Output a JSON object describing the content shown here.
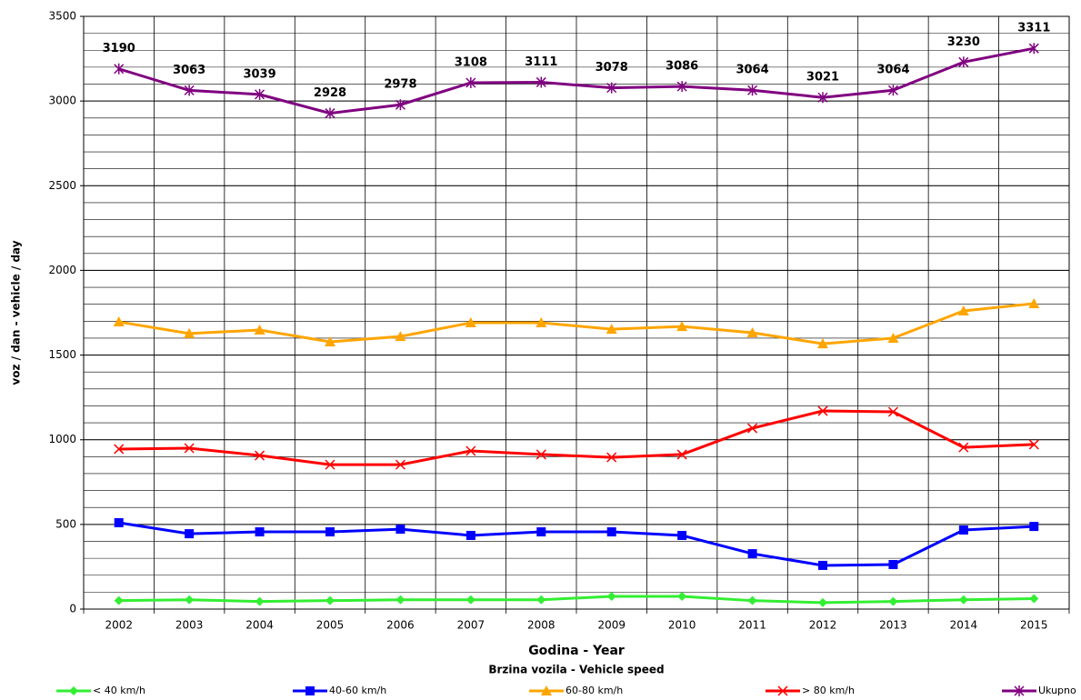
{
  "chart_data": {
    "type": "line",
    "x_label": "Godina - Year",
    "y_label": "voz / dan - vehicle / day",
    "legend_title": "Brzina vozila - Vehicle speed",
    "categories": [
      "2002",
      "2003",
      "2004",
      "2005",
      "2006",
      "2007",
      "2008",
      "2009",
      "2010",
      "2011",
      "2012",
      "2013",
      "2014",
      "2015"
    ],
    "series": [
      {
        "name": "< 40 km/h",
        "color": "#33ee33",
        "marker": "diamond",
        "values": [
          50,
          55,
          45,
          50,
          55,
          55,
          55,
          75,
          75,
          50,
          38,
          45,
          55,
          62
        ]
      },
      {
        "name": "40-60 km/h",
        "color": "#0000ff",
        "marker": "square",
        "values": [
          510,
          445,
          456,
          456,
          472,
          435,
          456,
          456,
          435,
          327,
          258,
          263,
          467,
          488
        ]
      },
      {
        "name": "60-80 km/h",
        "color": "#ffa500",
        "marker": "triangle",
        "values": [
          1696,
          1627,
          1648,
          1578,
          1610,
          1691,
          1691,
          1653,
          1669,
          1632,
          1567,
          1600,
          1761,
          1804
        ]
      },
      {
        "name": "> 80 km/h",
        "color": "#ff0000",
        "marker": "x",
        "values": [
          945,
          950,
          907,
          853,
          853,
          934,
          913,
          896,
          913,
          1068,
          1170,
          1165,
          955,
          972
        ]
      },
      {
        "name": "Ukupno",
        "color": "#800080",
        "marker": "star",
        "labels": true,
        "values": [
          3190,
          3063,
          3039,
          2928,
          2978,
          3108,
          3111,
          3078,
          3086,
          3064,
          3021,
          3064,
          3230,
          3311
        ]
      }
    ],
    "ylim": [
      0,
      3500
    ],
    "yticks": [
      0,
      500,
      1000,
      1500,
      2000,
      2500,
      3000,
      3500
    ],
    "grid": true,
    "minor_grid_step": 100,
    "legend": "bottom"
  }
}
